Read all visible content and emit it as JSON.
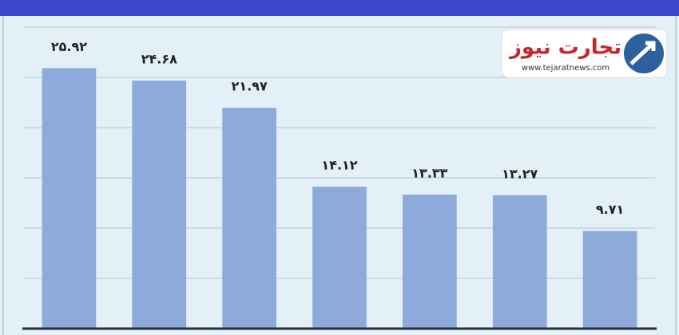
{
  "chart_data": {
    "type": "bar",
    "values": [
      25.92,
      24.68,
      21.97,
      14.12,
      13.33,
      13.27,
      9.71
    ],
    "value_labels": [
      "۲۵.۹۲",
      "۲۴.۶۸",
      "۲۱.۹۷",
      "۱۴.۱۲",
      "۱۳.۳۳",
      "۱۳.۲۷",
      "۹.۷۱"
    ],
    "color": "#8eaadb",
    "ylim": [
      0,
      30
    ],
    "yticks": [
      5,
      10,
      15,
      20,
      25,
      30
    ],
    "grid": true
  },
  "logo": {
    "name": "تجارت نیوز",
    "url": "www.tejaratnews.com"
  }
}
